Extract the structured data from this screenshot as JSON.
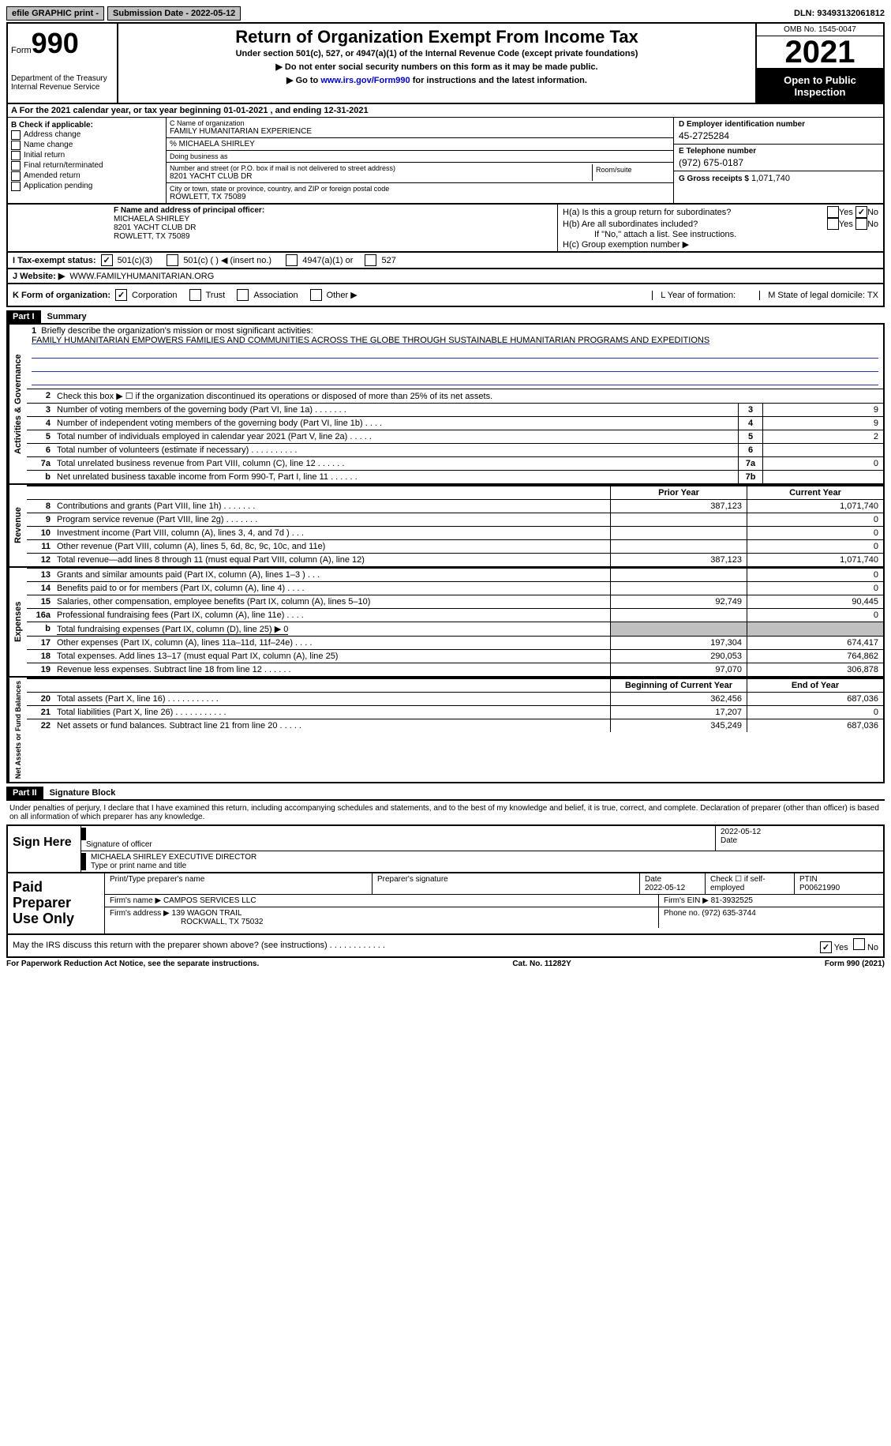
{
  "topbar": {
    "efile": "efile GRAPHIC print -",
    "submission_label": "Submission Date - 2022-05-12",
    "dln": "DLN: 93493132061812"
  },
  "header": {
    "form_word": "Form",
    "form_num": "990",
    "dept": "Department of the Treasury Internal Revenue Service",
    "title": "Return of Organization Exempt From Income Tax",
    "subtitle": "Under section 501(c), 527, or 4947(a)(1) of the Internal Revenue Code (except private foundations)",
    "note1": "▶ Do not enter social security numbers on this form as it may be made public.",
    "note2_pre": "▶ Go to ",
    "note2_link": "www.irs.gov/Form990",
    "note2_post": " for instructions and the latest information.",
    "omb": "OMB No. 1545-0047",
    "year": "2021",
    "open": "Open to Public Inspection"
  },
  "rowA": "A For the 2021 calendar year, or tax year beginning 01-01-2021   , and ending 12-31-2021",
  "boxB": {
    "label": "B Check if applicable:",
    "opts": [
      "Address change",
      "Name change",
      "Initial return",
      "Final return/terminated",
      "Amended return",
      "Application pending"
    ]
  },
  "boxC": {
    "name_label": "C Name of organization",
    "name": "FAMILY HUMANITARIAN EXPERIENCE",
    "care_of": "% MICHAELA SHIRLEY",
    "dba_label": "Doing business as",
    "addr_label": "Number and street (or P.O. box if mail is not delivered to street address)",
    "room_label": "Room/suite",
    "addr": "8201 YACHT CLUB DR",
    "city_label": "City or town, state or province, country, and ZIP or foreign postal code",
    "city": "ROWLETT, TX  75089"
  },
  "boxD": {
    "label": "D Employer identification number",
    "val": "45-2725284"
  },
  "boxE": {
    "label": "E Telephone number",
    "val": "(972) 675-0187"
  },
  "boxG": {
    "label": "G Gross receipts $",
    "val": "1,071,740"
  },
  "boxF": {
    "label": "F Name and address of principal officer:",
    "name": "MICHAELA SHIRLEY",
    "addr1": "8201 YACHT CLUB DR",
    "addr2": "ROWLETT, TX  75089"
  },
  "boxH": {
    "a": "H(a)  Is this a group return for subordinates?",
    "b": "H(b)  Are all subordinates included?",
    "b_note": "If \"No,\" attach a list. See instructions.",
    "c": "H(c)  Group exemption number ▶",
    "yes": "Yes",
    "no": "No"
  },
  "rowI": {
    "label": "I   Tax-exempt status:",
    "o1": "501(c)(3)",
    "o2": "501(c) (  ) ◀ (insert no.)",
    "o3": "4947(a)(1) or",
    "o4": "527"
  },
  "rowJ": {
    "label": "J   Website: ▶",
    "val": "WWW.FAMILYHUMANITARIAN.ORG"
  },
  "rowK": {
    "label": "K Form of organization:",
    "opts": [
      "Corporation",
      "Trust",
      "Association",
      "Other ▶"
    ],
    "L": "L Year of formation:",
    "M": "M State of legal domicile: TX"
  },
  "part1": {
    "bar": "Part I",
    "title": "Summary"
  },
  "summary": {
    "line1_label": "Briefly describe the organization's mission or most significant activities:",
    "mission": "FAMILY HUMANITARIAN EMPOWERS FAMILIES AND COMMUNITIES ACROSS THE GLOBE THROUGH SUSTAINABLE HUMANITARIAN PROGRAMS AND EXPEDITIONS",
    "line2": "Check this box ▶ ☐  if the organization discontinued its operations or disposed of more than 25% of its net assets.",
    "lines_gov": [
      {
        "n": "3",
        "t": "Number of voting members of the governing body (Part VI, line 1a)   .    .    .    .    .    .    .",
        "box": "3",
        "v": "9"
      },
      {
        "n": "4",
        "t": "Number of independent voting members of the governing body (Part VI, line 1b)   .    .    .    .",
        "box": "4",
        "v": "9"
      },
      {
        "n": "5",
        "t": "Total number of individuals employed in calendar year 2021 (Part V, line 2a)   .    .    .    .    .",
        "box": "5",
        "v": "2"
      },
      {
        "n": "6",
        "t": "Total number of volunteers (estimate if necessary)    .    .    .    .    .    .    .    .    .    .",
        "box": "6",
        "v": ""
      },
      {
        "n": "7a",
        "t": "Total unrelated business revenue from Part VIII, column (C), line 12    .    .    .    .    .    .",
        "box": "7a",
        "v": "0"
      },
      {
        "n": "b",
        "t": "Net unrelated business taxable income from Form 990-T, Part I, line 11   .    .    .    .    .    .",
        "box": "7b",
        "v": ""
      }
    ],
    "hdr_prior": "Prior Year",
    "hdr_current": "Current Year",
    "lines_rev": [
      {
        "n": "8",
        "t": "Contributions and grants (Part VIII, line 1h)   .    .    .    .    .    .    .",
        "p": "387,123",
        "c": "1,071,740"
      },
      {
        "n": "9",
        "t": "Program service revenue (Part VIII, line 2g)   .    .    .    .    .    .    .",
        "p": "",
        "c": "0"
      },
      {
        "n": "10",
        "t": "Investment income (Part VIII, column (A), lines 3, 4, and 7d )   .    .    .",
        "p": "",
        "c": "0"
      },
      {
        "n": "11",
        "t": "Other revenue (Part VIII, column (A), lines 5, 6d, 8c, 9c, 10c, and 11e)",
        "p": "",
        "c": "0"
      },
      {
        "n": "12",
        "t": "Total revenue—add lines 8 through 11 (must equal Part VIII, column (A), line 12)",
        "p": "387,123",
        "c": "1,071,740"
      }
    ],
    "lines_exp": [
      {
        "n": "13",
        "t": "Grants and similar amounts paid (Part IX, column (A), lines 1–3 )   .    .    .",
        "p": "",
        "c": "0"
      },
      {
        "n": "14",
        "t": "Benefits paid to or for members (Part IX, column (A), line 4)   .    .    .    .",
        "p": "",
        "c": "0"
      },
      {
        "n": "15",
        "t": "Salaries, other compensation, employee benefits (Part IX, column (A), lines 5–10)",
        "p": "92,749",
        "c": "90,445"
      },
      {
        "n": "16a",
        "t": "Professional fundraising fees (Part IX, column (A), line 11e)   .    .    .    .",
        "p": "",
        "c": "0"
      },
      {
        "n": "b",
        "t": "Total fundraising expenses (Part IX, column (D), line 25) ▶ 0",
        "gray": true
      },
      {
        "n": "17",
        "t": "Other expenses (Part IX, column (A), lines 11a–11d, 11f–24e)   .    .    .    .",
        "p": "197,304",
        "c": "674,417"
      },
      {
        "n": "18",
        "t": "Total expenses. Add lines 13–17 (must equal Part IX, column (A), line 25)",
        "p": "290,053",
        "c": "764,862"
      },
      {
        "n": "19",
        "t": "Revenue less expenses. Subtract line 18 from line 12   .    .    .    .    .    .",
        "p": "97,070",
        "c": "306,878"
      }
    ],
    "hdr_begin": "Beginning of Current Year",
    "hdr_end": "End of Year",
    "lines_net": [
      {
        "n": "20",
        "t": "Total assets (Part X, line 16)   .    .    .    .    .    .    .    .    .    .    .",
        "p": "362,456",
        "c": "687,036"
      },
      {
        "n": "21",
        "t": "Total liabilities (Part X, line 26)   .    .    .    .    .    .    .    .    .    .    .",
        "p": "17,207",
        "c": "0"
      },
      {
        "n": "22",
        "t": "Net assets or fund balances. Subtract line 21 from line 20   .    .    .    .    .",
        "p": "345,249",
        "c": "687,036"
      }
    ],
    "tabs": {
      "gov": "Activities & Governance",
      "rev": "Revenue",
      "exp": "Expenses",
      "net": "Net Assets or Fund Balances"
    }
  },
  "part2": {
    "bar": "Part II",
    "title": "Signature Block"
  },
  "sig": {
    "intro": "Under penalties of perjury, I declare that I have examined this return, including accompanying schedules and statements, and to the best of my knowledge and belief, it is true, correct, and complete. Declaration of preparer (other than officer) is based on all information of which preparer has any knowledge.",
    "sign_here": "Sign Here",
    "sig_officer": "Signature of officer",
    "date": "Date",
    "date_val": "2022-05-12",
    "name_title": "MICHAELA SHIRLEY  EXECUTIVE DIRECTOR",
    "name_label": "Type or print name and title"
  },
  "prep": {
    "left": "Paid Preparer Use Only",
    "h1": "Print/Type preparer's name",
    "h2": "Preparer's signature",
    "h3_l": "Date",
    "h3_v": "2022-05-12",
    "h4": "Check ☐ if self-employed",
    "h5_l": "PTIN",
    "h5_v": "P00621990",
    "firm_name_l": "Firm's name    ▶",
    "firm_name": "CAMPOS SERVICES LLC",
    "firm_ein_l": "Firm's EIN ▶",
    "firm_ein": "81-3932525",
    "firm_addr_l": "Firm's address ▶",
    "firm_addr1": "139 WAGON TRAIL",
    "firm_addr2": "ROCKWALL, TX  75032",
    "phone_l": "Phone no.",
    "phone": "(972) 635-3744"
  },
  "footer": {
    "q": "May the IRS discuss this return with the preparer shown above? (see instructions)   .    .    .    .    .    .    .    .    .    .    .    .",
    "yes": "Yes",
    "no": "No",
    "paperwork": "For Paperwork Reduction Act Notice, see the separate instructions.",
    "cat": "Cat. No. 11282Y",
    "form": "Form 990 (2021)"
  }
}
